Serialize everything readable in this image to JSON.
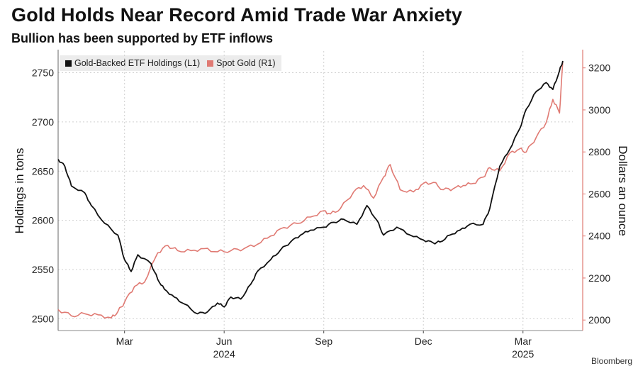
{
  "title": "Gold Holds Near Record Amid Trade War Anxiety",
  "subtitle": "Bullion has been supported by ETF inflows",
  "legend": [
    {
      "label": "Gold-Backed ETF Holdings (L1)",
      "color": "#111111"
    },
    {
      "label": "Spot Gold (R1)",
      "color": "#e07a73"
    }
  ],
  "colors": {
    "etf": "#111111",
    "gold": "#e07a73",
    "grid": "#d0d0d0"
  },
  "watermark": "Bloomberg",
  "chart_data": {
    "type": "line",
    "title": "Gold Holds Near Record Amid Trade War Anxiety",
    "subtitle": "Bullion has been supported by ETF inflows",
    "xlabel": "",
    "x_ticks": [
      "Mar",
      "Jun",
      "Sep",
      "Dec",
      "Mar"
    ],
    "x_tick_pos": [
      2,
      5,
      8,
      11,
      14
    ],
    "year_labels": [
      {
        "label": "2024",
        "pos": 5
      },
      {
        "label": "2025",
        "pos": 14
      }
    ],
    "xlim": [
      0,
      15.5
    ],
    "left_axis": {
      "label": "Holdings in tons",
      "ylim": [
        2488,
        2772
      ],
      "ticks": [
        2500,
        2550,
        2600,
        2650,
        2700,
        2750
      ]
    },
    "right_axis": {
      "label": "Dollars an ounce",
      "ylim": [
        1950,
        3280
      ],
      "ticks": [
        2000,
        2200,
        2400,
        2600,
        2800,
        3000,
        3200
      ]
    },
    "series": [
      {
        "name": "Gold-Backed ETF Holdings (L1)",
        "axis": "left",
        "x": [
          0,
          0.2,
          0.4,
          0.8,
          1.0,
          1.4,
          1.8,
          2.0,
          2.2,
          2.4,
          2.8,
          3.0,
          3.2,
          3.5,
          3.8,
          4.2,
          4.5,
          4.8,
          5.0,
          5.2,
          5.5,
          5.8,
          6.0,
          6.4,
          6.7,
          7.0,
          7.3,
          7.6,
          8.0,
          8.3,
          8.6,
          9.0,
          9.3,
          9.6,
          9.8,
          10.2,
          10.6,
          11.0,
          11.3,
          11.5,
          11.8,
          12.1,
          12.4,
          12.8,
          13.0,
          13.3,
          13.6,
          13.9,
          14.1,
          14.4,
          14.7,
          14.9,
          15.1,
          15.2
        ],
        "values": [
          2662,
          2655,
          2635,
          2628,
          2615,
          2597,
          2585,
          2560,
          2548,
          2565,
          2556,
          2540,
          2530,
          2522,
          2515,
          2505,
          2507,
          2516,
          2512,
          2522,
          2520,
          2535,
          2548,
          2560,
          2570,
          2578,
          2585,
          2590,
          2593,
          2598,
          2601,
          2596,
          2615,
          2600,
          2585,
          2593,
          2585,
          2580,
          2577,
          2578,
          2585,
          2590,
          2596,
          2596,
          2612,
          2655,
          2672,
          2693,
          2713,
          2731,
          2740,
          2733,
          2752,
          2762
        ]
      },
      {
        "name": "Spot Gold (R1)",
        "axis": "right",
        "x": [
          0,
          0.4,
          0.8,
          1.2,
          1.6,
          1.8,
          2.0,
          2.3,
          2.6,
          3.0,
          3.3,
          3.6,
          4.0,
          4.4,
          4.8,
          5.2,
          5.6,
          6.0,
          6.4,
          6.8,
          7.2,
          7.6,
          8.0,
          8.2,
          8.5,
          8.9,
          9.2,
          9.5,
          9.8,
          10.0,
          10.3,
          10.7,
          11.0,
          11.3,
          11.6,
          11.9,
          12.2,
          12.5,
          12.8,
          13.0,
          13.3,
          13.6,
          13.9,
          14.1,
          14.4,
          14.7,
          14.9,
          15.1,
          15.2
        ],
        "values": [
          2050,
          2020,
          2030,
          2025,
          2010,
          2040,
          2085,
          2160,
          2180,
          2320,
          2355,
          2330,
          2330,
          2340,
          2325,
          2330,
          2340,
          2360,
          2400,
          2440,
          2460,
          2490,
          2520,
          2505,
          2530,
          2610,
          2640,
          2580,
          2680,
          2740,
          2620,
          2610,
          2650,
          2655,
          2620,
          2625,
          2640,
          2650,
          2680,
          2725,
          2710,
          2795,
          2815,
          2800,
          2870,
          2940,
          3050,
          2985,
          3230
        ]
      }
    ]
  }
}
